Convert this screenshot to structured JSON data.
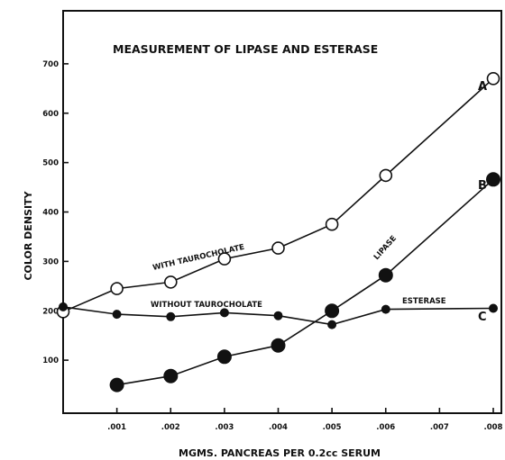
{
  "chart_data": {
    "type": "line",
    "title": "MEASUREMENT OF LIPASE AND ESTERASE",
    "xlabel": "MGMS. PANCREAS PER 0.2cc SERUM",
    "ylabel": "COLOR DENSITY",
    "xlim": [
      0,
      0.008
    ],
    "ylim": [
      0,
      800
    ],
    "x_ticks": [
      {
        "value": 0.001,
        "label": ".001"
      },
      {
        "value": 0.002,
        "label": ".002"
      },
      {
        "value": 0.003,
        "label": ".003"
      },
      {
        "value": 0.004,
        "label": ".004"
      },
      {
        "value": 0.005,
        "label": ".005"
      },
      {
        "value": 0.006,
        "label": ".006"
      },
      {
        "value": 0.007,
        "label": ".007"
      },
      {
        "value": 0.008,
        "label": ".008"
      }
    ],
    "y_ticks": [
      {
        "value": 100,
        "label": "100"
      },
      {
        "value": 200,
        "label": "200"
      },
      {
        "value": 300,
        "label": "300"
      },
      {
        "value": 400,
        "label": "400"
      },
      {
        "value": 500,
        "label": "500"
      },
      {
        "value": 600,
        "label": "600"
      },
      {
        "value": 700,
        "label": "700"
      }
    ],
    "grid": false,
    "series": [
      {
        "name": "A",
        "annotation": "WITH TAUROCHOLATE",
        "marker": "open-circle",
        "x": [
          0,
          0.001,
          0.002,
          0.003,
          0.004,
          0.005,
          0.006,
          0.008
        ],
        "y": [
          198,
          245,
          258,
          305,
          327,
          375,
          474,
          670
        ]
      },
      {
        "name": "B",
        "annotation": "LIPASE",
        "marker": "filled-circle-large",
        "x": [
          0.001,
          0.002,
          0.003,
          0.004,
          0.005,
          0.006,
          0.008
        ],
        "y": [
          50,
          68,
          107,
          130,
          200,
          272,
          466
        ]
      },
      {
        "name": "C",
        "annotation": "ESTERASE",
        "annotation_2": "WITHOUT TAUROCHOLATE",
        "marker": "filled-circle-small",
        "x": [
          0,
          0.001,
          0.002,
          0.003,
          0.004,
          0.005,
          0.006,
          0.008
        ],
        "y": [
          208,
          193,
          188,
          196,
          190,
          172,
          203,
          205
        ]
      }
    ]
  }
}
